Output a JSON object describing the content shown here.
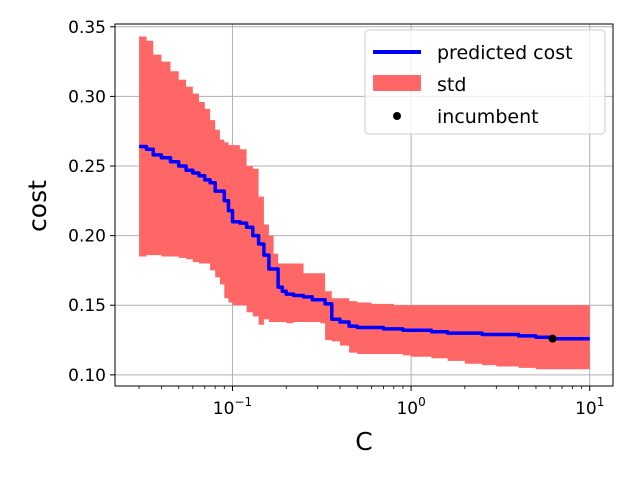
{
  "chart_data": {
    "type": "line",
    "title": "",
    "xlabel": "C",
    "ylabel": "cost",
    "xscale": "log",
    "xlim": [
      0.022,
      13.5
    ],
    "ylim": [
      0.092,
      0.352
    ],
    "grid": true,
    "legend_placement": "top-right",
    "x_ticks": [
      {
        "value": 0.1,
        "base": "10",
        "exponent": "−1"
      },
      {
        "value": 1,
        "base": "10",
        "exponent": "0"
      },
      {
        "value": 10,
        "base": "10",
        "exponent": "1"
      }
    ],
    "y_ticks": [
      {
        "value": 0.1,
        "label": "0.10"
      },
      {
        "value": 0.15,
        "label": "0.15"
      },
      {
        "value": 0.2,
        "label": "0.20"
      },
      {
        "value": 0.25,
        "label": "0.25"
      },
      {
        "value": 0.3,
        "label": "0.30"
      },
      {
        "value": 0.35,
        "label": "0.35"
      }
    ],
    "x": [
      0.03,
      0.033,
      0.036,
      0.04,
      0.045,
      0.05,
      0.055,
      0.06,
      0.065,
      0.07,
      0.075,
      0.08,
      0.085,
      0.09,
      0.095,
      0.1,
      0.11,
      0.12,
      0.13,
      0.14,
      0.15,
      0.16,
      0.17,
      0.18,
      0.19,
      0.2,
      0.22,
      0.25,
      0.28,
      0.31,
      0.33,
      0.36,
      0.4,
      0.45,
      0.5,
      0.6,
      0.7,
      0.8,
      0.9,
      1.0,
      1.3,
      1.6,
      2.0,
      2.5,
      3.0,
      4.0,
      5.0,
      6.0,
      7.0,
      8.0,
      10.0
    ],
    "series": [
      {
        "name": "predicted cost",
        "color": "#0000ff",
        "values": [
          0.264,
          0.262,
          0.258,
          0.256,
          0.253,
          0.25,
          0.247,
          0.245,
          0.243,
          0.24,
          0.238,
          0.232,
          0.232,
          0.225,
          0.218,
          0.21,
          0.209,
          0.206,
          0.2,
          0.194,
          0.186,
          0.176,
          0.176,
          0.163,
          0.16,
          0.158,
          0.157,
          0.156,
          0.154,
          0.154,
          0.151,
          0.14,
          0.138,
          0.135,
          0.134,
          0.134,
          0.133,
          0.133,
          0.132,
          0.132,
          0.131,
          0.13,
          0.13,
          0.129,
          0.129,
          0.128,
          0.127,
          0.126,
          0.126,
          0.126,
          0.126
        ]
      }
    ],
    "band": {
      "name": "std",
      "color": "#ff6666",
      "upper": [
        0.343,
        0.34,
        0.33,
        0.325,
        0.318,
        0.312,
        0.307,
        0.302,
        0.296,
        0.291,
        0.283,
        0.276,
        0.269,
        0.267,
        0.265,
        0.265,
        0.262,
        0.25,
        0.248,
        0.228,
        0.208,
        0.2,
        0.187,
        0.18,
        0.18,
        0.18,
        0.18,
        0.173,
        0.173,
        0.173,
        0.16,
        0.155,
        0.155,
        0.153,
        0.152,
        0.151,
        0.151,
        0.15,
        0.15,
        0.15,
        0.15,
        0.15,
        0.15,
        0.15,
        0.15,
        0.15,
        0.15,
        0.15,
        0.15,
        0.15,
        0.15
      ],
      "lower": [
        0.185,
        0.186,
        0.186,
        0.185,
        0.185,
        0.184,
        0.183,
        0.181,
        0.18,
        0.18,
        0.175,
        0.17,
        0.165,
        0.155,
        0.152,
        0.15,
        0.15,
        0.145,
        0.142,
        0.136,
        0.14,
        0.138,
        0.138,
        0.138,
        0.138,
        0.137,
        0.138,
        0.138,
        0.138,
        0.137,
        0.125,
        0.124,
        0.121,
        0.116,
        0.115,
        0.115,
        0.115,
        0.115,
        0.114,
        0.113,
        0.112,
        0.11,
        0.108,
        0.107,
        0.106,
        0.105,
        0.104,
        0.104,
        0.104,
        0.104,
        0.104
      ]
    },
    "incumbent": {
      "name": "incumbent",
      "color": "#000000",
      "x": 6.2,
      "y": 0.126
    }
  }
}
